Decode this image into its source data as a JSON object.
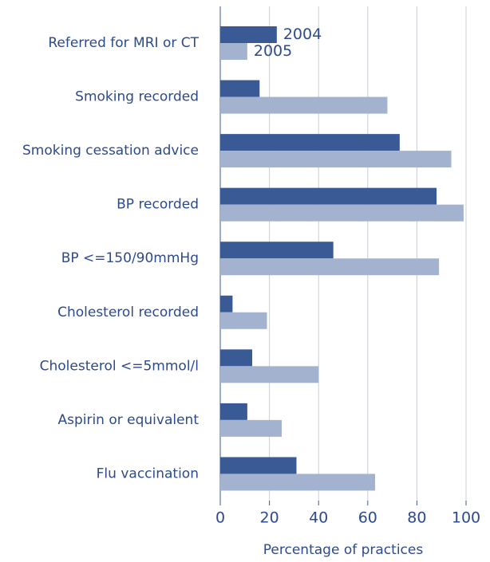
{
  "chart_data": {
    "type": "bar",
    "orientation": "horizontal",
    "categories": [
      "Referred for MRI or CT",
      "Smoking recorded",
      "Smoking cessation advice",
      "BP recorded",
      "BP <=150/90mmHg",
      "Cholesterol recorded",
      "Cholesterol <=5mmol/l",
      "Aspirin or equivalent",
      "Flu vaccination"
    ],
    "series": [
      {
        "name": "2004",
        "color": "#3a5a96",
        "values": [
          23,
          16,
          73,
          88,
          46,
          5,
          13,
          11,
          31
        ]
      },
      {
        "name": "2005",
        "color": "#a3b3cf",
        "values": [
          11,
          68,
          94,
          99,
          89,
          19,
          40,
          25,
          63
        ]
      }
    ],
    "xlim": [
      0,
      100
    ],
    "xticks": [
      0,
      20,
      40,
      60,
      80,
      100
    ],
    "x_label": "Percentage of practices",
    "grid": true
  }
}
